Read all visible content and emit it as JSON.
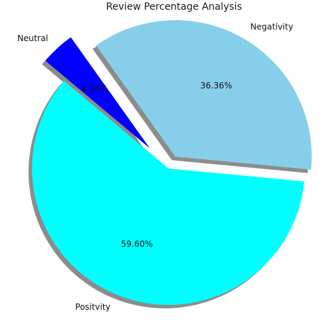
{
  "chart_data": {
    "type": "pie",
    "title": "Review Percentage Analysis",
    "categories": [
      "Positvity",
      "Negativity",
      "Neutral"
    ],
    "values": [
      59.6,
      36.36,
      4.04
    ],
    "value_labels": [
      "59.60%",
      "36.36%",
      "4.04%"
    ],
    "colors": [
      "#00ffff",
      "#87ceeb",
      "#0000ff"
    ],
    "explode": [
      0,
      0.1,
      0.2
    ],
    "shadow": true,
    "start_angle_deg": 140
  }
}
